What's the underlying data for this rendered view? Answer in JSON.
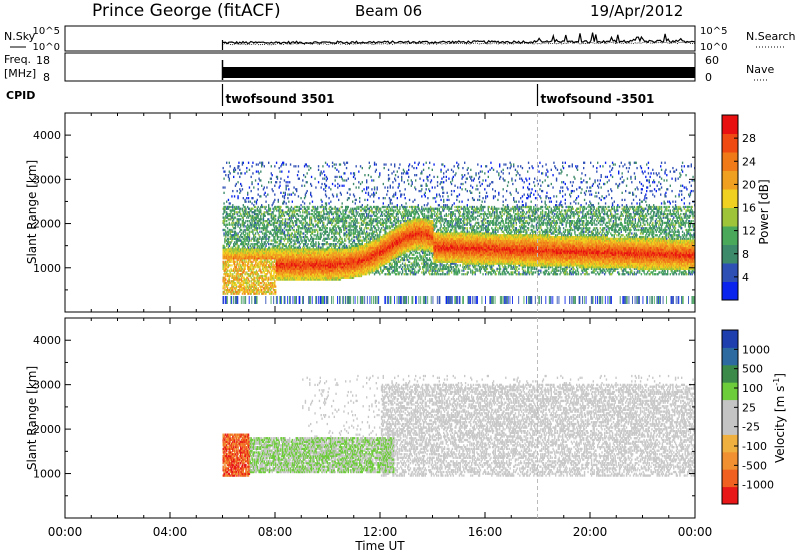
{
  "header": {
    "station": "Prince George (fitACF)",
    "beam": "Beam 06",
    "date": "19/Apr/2012"
  },
  "noise_panel": {
    "left_label": "N.Sky",
    "left_ticks": [
      "10^5",
      "10^0"
    ],
    "right_ticks": [
      "10^5",
      "10^0"
    ],
    "right_label": "N.Search"
  },
  "freq_panel": {
    "left_label_1": "Freq.",
    "left_label_2": "[MHz]",
    "left_ticks": [
      "18",
      "8"
    ],
    "right_ticks": [
      "60",
      "0"
    ],
    "right_label": "Nave"
  },
  "cpid": {
    "label": "CPID",
    "segments": [
      {
        "start_hour": 6.0,
        "name": "twofsound 3501"
      },
      {
        "start_hour": 18.0,
        "name": "twofsound -3501"
      }
    ]
  },
  "chart_data": [
    {
      "type": "heatmap",
      "parameter": "power",
      "ylabel": "Slant Range [km]",
      "ylim": [
        0,
        4500
      ],
      "yticks": [
        "1000",
        "2000",
        "3000",
        "4000"
      ],
      "xlim_hours": [
        0,
        24
      ],
      "colorbar": {
        "label": "Power [dB]",
        "ticks": [
          "4",
          "8",
          "12",
          "16",
          "20",
          "24",
          "28"
        ],
        "range": [
          0,
          32
        ],
        "colors": [
          "#0a24ee",
          "#2e4fb4",
          "#3d8a6b",
          "#49a85a",
          "#9ec53a",
          "#f0d020",
          "#f0a020",
          "#f07a18",
          "#ef4a12",
          "#e81010"
        ]
      }
    },
    {
      "type": "heatmap",
      "parameter": "velocity",
      "ylabel": "Slant Range [km]",
      "ylim": [
        0,
        4500
      ],
      "yticks": [
        "1000",
        "2000",
        "3000",
        "4000"
      ],
      "xlim_hours": [
        0,
        24
      ],
      "colorbar": {
        "label_main": "Velocity  [m s",
        "label_sup": "-1",
        "label_end": "]",
        "ticks": [
          "1000",
          "500",
          "100",
          "25",
          "-25",
          "-100",
          "-500",
          "-1000"
        ],
        "colors": [
          "#1f3fae",
          "#2c6aa0",
          "#3b8a4a",
          "#6dcc3a",
          "#c4c4c4",
          "#c4c4c4",
          "#f0b040",
          "#f09030",
          "#f06020",
          "#e81818"
        ]
      }
    }
  ],
  "xaxis": {
    "label": "Time UT",
    "ticks": [
      "00:00",
      "04:00",
      "08:00",
      "12:00",
      "16:00",
      "20:00",
      "00:00"
    ]
  }
}
